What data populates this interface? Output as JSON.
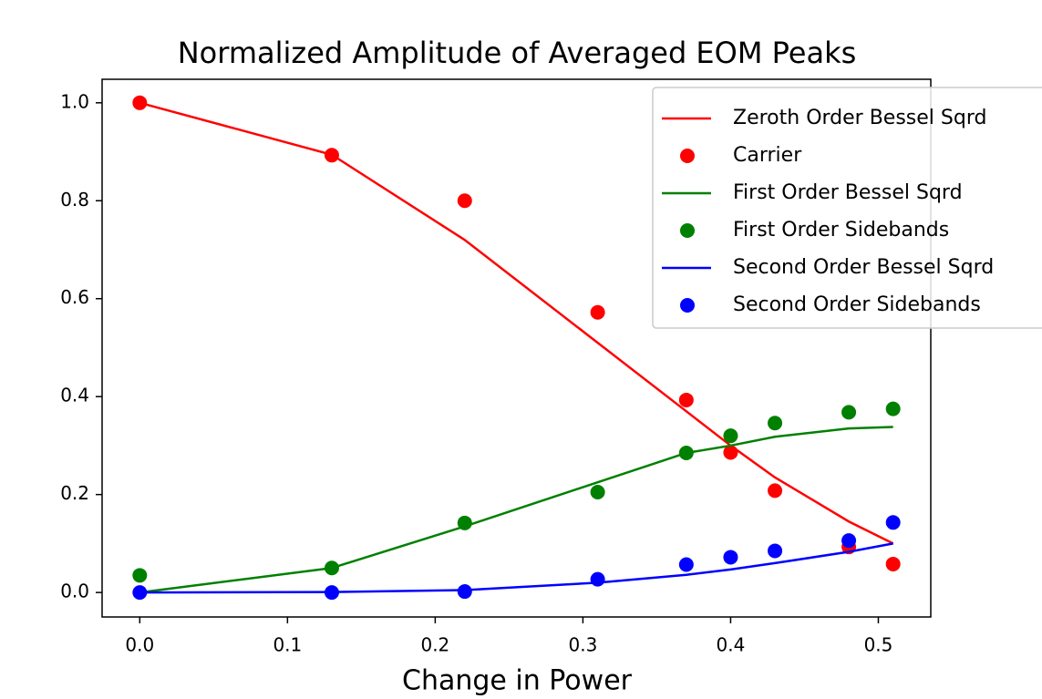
{
  "chart_data": {
    "type": "line",
    "title": "Normalized Amplitude of Averaged EOM Peaks",
    "xlabel": "Change in Power",
    "x": [
      0,
      0.13,
      0.22,
      0.31,
      0.37,
      0.4,
      0.43,
      0.48,
      0.51
    ],
    "series": [
      {
        "name": "Zeroth Order Bessel Sqrd",
        "color": "#ff0000",
        "style": "line",
        "values": [
          1.0,
          0.894,
          0.72,
          0.51,
          0.37,
          0.3,
          0.235,
          0.145,
          0.1
        ]
      },
      {
        "name": "Carrier",
        "color": "#ff0000",
        "style": "marker",
        "values": [
          1.0,
          0.893,
          0.8,
          0.572,
          0.393,
          0.286,
          0.208,
          0.093,
          0.058
        ]
      },
      {
        "name": "First Order Bessel Sqrd",
        "color": "#008000",
        "style": "line",
        "values": [
          0.0,
          0.05,
          0.135,
          0.225,
          0.285,
          0.3,
          0.318,
          0.335,
          0.338
        ]
      },
      {
        "name": "First Order Sidebands",
        "color": "#008000",
        "style": "marker",
        "values": [
          0.035,
          0.05,
          0.142,
          0.205,
          0.285,
          0.32,
          0.346,
          0.368,
          0.375
        ]
      },
      {
        "name": "Second Order Bessel Sqrd",
        "color": "#0000ff",
        "style": "line",
        "values": [
          0.0,
          0.001,
          0.005,
          0.02,
          0.036,
          0.047,
          0.06,
          0.083,
          0.1
        ]
      },
      {
        "name": "Second Order Sidebands",
        "color": "#0000ff",
        "style": "marker",
        "values": [
          0.0,
          0.0,
          0.002,
          0.027,
          0.057,
          0.072,
          0.085,
          0.106,
          0.143
        ]
      }
    ],
    "xlim": [
      -0.0255,
      0.5355
    ],
    "ylim": [
      -0.05,
      1.048
    ],
    "xticks": [
      {
        "value": 0,
        "label": "0.0"
      },
      0.1,
      0.2,
      0.3,
      0.4,
      0.5
    ],
    "yticks": [
      {
        "value": 0,
        "label": "0.0"
      },
      0.2,
      0.4,
      0.6,
      0.8,
      {
        "value": 1,
        "label": "1.0"
      }
    ],
    "legend": "upper right"
  }
}
